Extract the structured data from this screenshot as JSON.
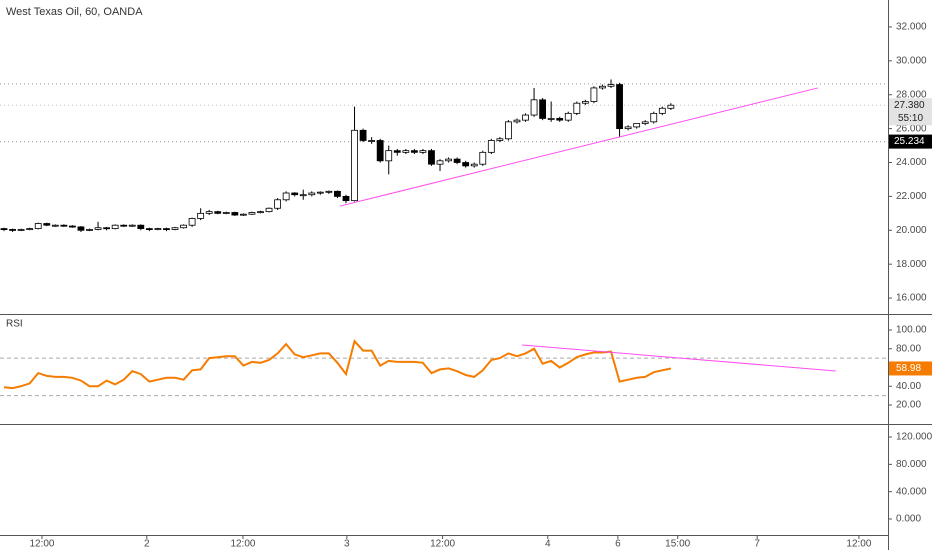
{
  "chart_data": [
    {
      "type": "candlestick",
      "title": "West Texas Oil, 60, OANDA",
      "x": [
        0,
        1,
        2,
        3,
        4,
        5,
        6,
        7,
        8,
        9,
        10,
        11,
        12,
        13,
        14,
        15,
        16,
        17,
        18,
        19,
        20,
        21,
        22,
        23,
        24,
        25,
        26,
        27,
        28,
        29,
        30,
        31,
        32,
        33,
        34,
        35,
        36,
        37,
        38,
        39,
        40,
        41,
        42,
        43,
        44,
        45,
        46,
        47,
        48,
        49,
        50,
        51,
        52,
        53,
        54,
        55,
        56,
        57,
        58,
        59,
        60,
        61,
        62,
        63,
        64,
        65,
        66,
        67,
        68,
        69,
        70,
        71,
        72,
        73,
        74,
        75,
        76,
        77,
        78
      ],
      "open": [
        20.1,
        20.05,
        20.0,
        20.05,
        20.1,
        20.4,
        20.3,
        20.3,
        20.25,
        20.2,
        20.0,
        20.05,
        20.15,
        20.1,
        20.3,
        20.25,
        20.3,
        20.1,
        20.05,
        20.1,
        20.05,
        20.15,
        20.3,
        20.7,
        21.0,
        21.1,
        21.0,
        21.05,
        20.9,
        20.95,
        21.05,
        21.1,
        21.3,
        21.8,
        22.2,
        22.1,
        22.1,
        22.2,
        22.25,
        22.3,
        22.0,
        21.75,
        25.9,
        25.3,
        25.3,
        24.1,
        24.7,
        24.6,
        24.7,
        24.6,
        24.7,
        23.9,
        24.1,
        24.2,
        24.0,
        23.8,
        23.9,
        24.6,
        25.3,
        25.4,
        26.4,
        26.5,
        26.8,
        27.7,
        26.6,
        26.6,
        26.5,
        26.9,
        27.5,
        27.6,
        28.4,
        28.5,
        28.6,
        26.0,
        26.1,
        26.3,
        26.4,
        26.9,
        27.2
      ],
      "high": [
        20.15,
        20.1,
        20.1,
        20.15,
        20.45,
        20.45,
        20.35,
        20.35,
        20.3,
        20.25,
        20.1,
        20.5,
        20.2,
        20.35,
        20.35,
        20.35,
        20.35,
        20.15,
        20.15,
        20.15,
        20.2,
        20.35,
        20.75,
        21.3,
        21.2,
        21.15,
        21.1,
        21.1,
        21.0,
        21.1,
        21.15,
        21.35,
        21.9,
        22.3,
        22.25,
        22.4,
        22.3,
        22.3,
        22.35,
        22.35,
        22.1,
        27.3,
        26.0,
        25.5,
        25.4,
        25.0,
        24.8,
        24.8,
        24.8,
        24.8,
        24.8,
        24.2,
        24.3,
        24.3,
        24.1,
        24.0,
        24.7,
        25.4,
        25.5,
        26.5,
        26.6,
        26.9,
        28.4,
        27.8,
        27.6,
        26.7,
        27.0,
        27.6,
        27.7,
        28.5,
        28.6,
        28.9,
        28.7,
        26.2,
        26.3,
        26.5,
        27.0,
        27.3,
        27.5
      ],
      "low": [
        19.95,
        19.9,
        19.95,
        20.0,
        20.05,
        20.25,
        20.2,
        20.2,
        20.15,
        19.9,
        19.95,
        20.0,
        20.0,
        20.05,
        20.2,
        20.2,
        20.0,
        19.95,
        20.0,
        19.95,
        20.0,
        20.1,
        20.2,
        20.6,
        20.9,
        20.95,
        20.95,
        20.85,
        20.85,
        20.9,
        21.0,
        21.05,
        21.2,
        21.7,
        22.0,
        21.8,
        22.0,
        22.1,
        22.15,
        21.9,
        21.6,
        21.7,
        25.2,
        25.1,
        24.0,
        23.3,
        24.4,
        24.5,
        24.5,
        24.5,
        23.8,
        23.5,
        24.0,
        23.9,
        23.7,
        23.7,
        23.8,
        24.5,
        25.2,
        25.3,
        26.3,
        26.4,
        26.7,
        26.5,
        26.4,
        26.4,
        26.4,
        26.8,
        27.4,
        27.5,
        28.3,
        28.4,
        25.5,
        25.9,
        26.0,
        26.2,
        26.3,
        26.8,
        27.1
      ],
      "close": [
        20.05,
        20.0,
        20.05,
        20.1,
        20.4,
        20.3,
        20.3,
        20.25,
        20.2,
        20.0,
        20.05,
        20.15,
        20.1,
        20.3,
        20.25,
        20.3,
        20.1,
        20.05,
        20.1,
        20.05,
        20.15,
        20.3,
        20.7,
        21.0,
        21.1,
        21.0,
        21.05,
        20.9,
        20.95,
        21.05,
        21.1,
        21.3,
        21.8,
        22.2,
        22.1,
        22.1,
        22.2,
        22.25,
        22.3,
        22.0,
        21.75,
        25.9,
        25.3,
        25.3,
        24.1,
        24.7,
        24.6,
        24.7,
        24.6,
        24.7,
        23.9,
        24.1,
        24.2,
        24.0,
        23.8,
        23.9,
        24.6,
        25.3,
        25.4,
        26.4,
        26.5,
        26.8,
        27.7,
        26.6,
        26.6,
        26.5,
        26.9,
        27.5,
        27.6,
        28.4,
        28.5,
        28.6,
        26.0,
        26.1,
        26.3,
        26.4,
        26.9,
        27.2,
        27.38
      ],
      "last_label": "27.380",
      "countdown": "55:10",
      "hlines": [
        28.64,
        25.234
      ],
      "trendline": {
        "x": [
          39.3,
          95.2
        ],
        "values": [
          21.43,
          28.4
        ],
        "color": "#ff4df0"
      },
      "up_color": "#ffffff",
      "down_color": "#000000",
      "xlim": [
        -0.47,
        103.4
      ],
      "xticks": [
        {
          "value": 4.44,
          "label": "12:00"
        },
        {
          "value": 16.7,
          "label": "2"
        },
        {
          "value": 27.95,
          "label": "12:00"
        },
        {
          "value": 40.1,
          "label": "3"
        },
        {
          "value": 51.3,
          "label": "12:00"
        },
        {
          "value": 63.6,
          "label": "4"
        },
        {
          "value": 71.8,
          "label": "6"
        },
        {
          "value": 78.8,
          "label": "15:00"
        },
        {
          "value": 88.1,
          "label": "7"
        },
        {
          "value": 100,
          "label": "12:00"
        }
      ],
      "ylim": [
        15.06,
        33.59
      ],
      "yticks": [
        {
          "value": 32,
          "label": "32.000"
        },
        {
          "value": 30,
          "label": "30.000"
        },
        {
          "value": 28,
          "label": "28.000"
        },
        {
          "value": 26,
          "label": "26.000"
        },
        {
          "value": 24,
          "label": "24.000"
        },
        {
          "value": 22,
          "label": "22.000"
        },
        {
          "value": 20,
          "label": "20.000"
        },
        {
          "value": 18,
          "label": "18.000"
        },
        {
          "value": 16,
          "label": "16.000"
        }
      ]
    },
    {
      "type": "line",
      "title": "RSI",
      "series": [
        {
          "name": "RSI",
          "color": "#f57c00",
          "values": [
            39,
            38,
            40,
            43,
            54,
            51,
            50,
            50,
            49,
            46,
            40,
            40,
            46,
            42,
            47,
            56,
            53,
            45,
            47,
            49,
            49,
            47,
            57,
            58,
            70,
            71,
            72,
            72,
            62,
            66,
            65,
            68,
            75,
            85,
            74,
            71,
            73,
            75,
            75,
            65,
            53,
            88,
            78,
            78,
            62,
            67,
            66,
            66,
            66,
            65,
            54,
            58,
            59,
            56,
            52,
            50,
            57,
            68,
            70,
            75,
            72,
            75,
            80,
            64,
            67,
            60,
            65,
            71,
            74,
            76,
            76,
            77,
            45,
            47,
            49,
            50,
            55,
            57,
            58.98
          ]
        }
      ],
      "levels": [
        70,
        30
      ],
      "trendline": {
        "x": [
          60.6,
          97.3
        ],
        "values": [
          84,
          56.3
        ],
        "color": "#ff4df0"
      },
      "ylim": [
        -0.27,
        116
      ],
      "yticks": [
        {
          "value": 100,
          "label": "100.00"
        },
        {
          "value": 80,
          "label": "80.00"
        },
        {
          "value": 40,
          "label": "40.00"
        },
        {
          "value": 20,
          "label": "20.00"
        }
      ]
    },
    {
      "type": "blank",
      "ylim": [
        -23.4,
        137.6
      ],
      "yticks": [
        {
          "value": 120,
          "label": "120.000"
        },
        {
          "value": 80,
          "label": "80.000"
        },
        {
          "value": 40,
          "label": "40.000"
        },
        {
          "value": 0,
          "label": "0.000"
        }
      ]
    }
  ]
}
